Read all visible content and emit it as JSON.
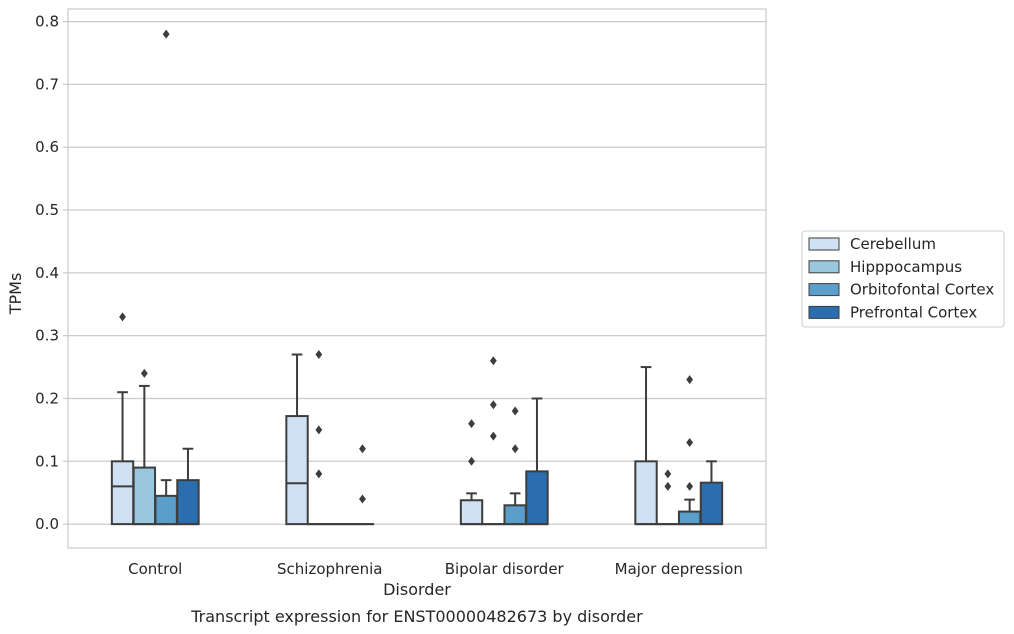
{
  "chart_data": {
    "type": "box",
    "title": "",
    "caption": "Transcript expression for ENST00000482673 by disorder",
    "xlabel": "Disorder",
    "ylabel": "TPMs",
    "categories": [
      "Control",
      "Schizophrenia",
      "Bipolar disorder",
      "Major depression"
    ],
    "ylim": [
      -0.038,
      0.82
    ],
    "yticks": [
      "0.0",
      "0.1",
      "0.2",
      "0.3",
      "0.4",
      "0.5",
      "0.6",
      "0.7",
      "0.8"
    ],
    "grid": "horizontal",
    "legend_position": "right",
    "series": [
      {
        "name": "Cerebellum",
        "color": "#cfe1f2",
        "boxes": [
          {
            "q1": 0.0,
            "median": 0.06,
            "q3": 0.1,
            "whisker_low": 0.0,
            "whisker_high": 0.21,
            "outliers": [
              0.33
            ]
          },
          {
            "q1": 0.0,
            "median": 0.065,
            "q3": 0.172,
            "whisker_low": 0.0,
            "whisker_high": 0.27,
            "outliers": []
          },
          {
            "q1": 0.0,
            "median": 0.0,
            "q3": 0.038,
            "whisker_low": 0.0,
            "whisker_high": 0.049,
            "outliers": [
              0.1,
              0.16
            ]
          },
          {
            "q1": 0.0,
            "median": 0.0,
            "q3": 0.1,
            "whisker_low": 0.0,
            "whisker_high": 0.25,
            "outliers": []
          }
        ]
      },
      {
        "name": "Hipppocampus",
        "color": "#9ac7e0",
        "boxes": [
          {
            "q1": 0.0,
            "median": 0.0,
            "q3": 0.09,
            "whisker_low": 0.0,
            "whisker_high": 0.22,
            "outliers": [
              0.24
            ]
          },
          {
            "q1": 0.0,
            "median": 0.0,
            "q3": 0.0,
            "whisker_low": 0.0,
            "whisker_high": 0.0,
            "outliers": [
              0.08,
              0.15,
              0.27
            ]
          },
          {
            "q1": 0.0,
            "median": 0.0,
            "q3": 0.0,
            "whisker_low": 0.0,
            "whisker_high": 0.0,
            "outliers": [
              0.14,
              0.19,
              0.26
            ]
          },
          {
            "q1": 0.0,
            "median": 0.0,
            "q3": 0.0,
            "whisker_low": 0.0,
            "whisker_high": 0.0,
            "outliers": [
              0.06,
              0.08
            ]
          }
        ]
      },
      {
        "name": "Orbitofontal Cortex",
        "color": "#5b9ec9",
        "boxes": [
          {
            "q1": 0.0,
            "median": 0.0,
            "q3": 0.045,
            "whisker_low": 0.0,
            "whisker_high": 0.07,
            "outliers": [
              0.78
            ]
          },
          {
            "q1": 0.0,
            "median": 0.0,
            "q3": 0.0,
            "whisker_low": 0.0,
            "whisker_high": 0.0,
            "outliers": []
          },
          {
            "q1": 0.0,
            "median": 0.0,
            "q3": 0.03,
            "whisker_low": 0.0,
            "whisker_high": 0.049,
            "outliers": [
              0.12,
              0.18
            ]
          },
          {
            "q1": 0.0,
            "median": 0.0,
            "q3": 0.02,
            "whisker_low": 0.0,
            "whisker_high": 0.039,
            "outliers": [
              0.06,
              0.13,
              0.23
            ]
          }
        ]
      },
      {
        "name": "Prefrontal Cortex",
        "color": "#2a6eaf",
        "boxes": [
          {
            "q1": 0.0,
            "median": 0.0,
            "q3": 0.07,
            "whisker_low": 0.0,
            "whisker_high": 0.12,
            "outliers": []
          },
          {
            "q1": 0.0,
            "median": 0.0,
            "q3": 0.0,
            "whisker_low": 0.0,
            "whisker_high": 0.0,
            "outliers": [
              0.04,
              0.12
            ]
          },
          {
            "q1": 0.0,
            "median": 0.0,
            "q3": 0.084,
            "whisker_low": 0.0,
            "whisker_high": 0.2,
            "outliers": []
          },
          {
            "q1": 0.0,
            "median": 0.0,
            "q3": 0.066,
            "whisker_low": 0.0,
            "whisker_high": 0.1,
            "outliers": []
          }
        ]
      }
    ]
  }
}
